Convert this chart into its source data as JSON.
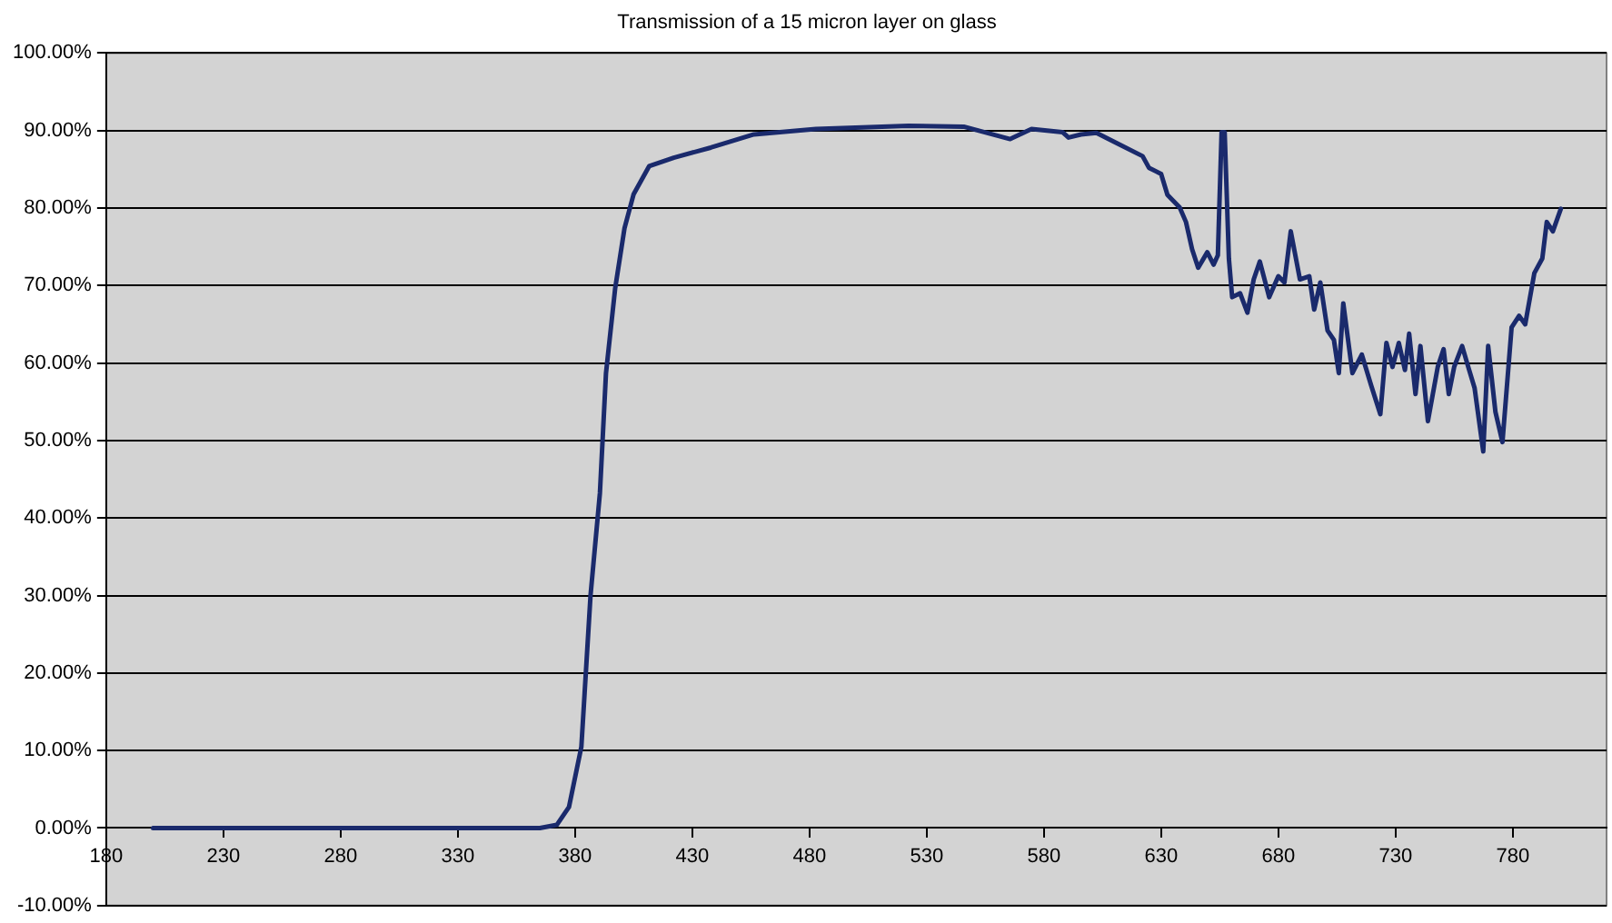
{
  "chart_data": {
    "type": "line",
    "title": "Transmission of a 15 micron layer on glass",
    "xlim": [
      180,
      820
    ],
    "xticks": [
      180,
      230,
      280,
      330,
      380,
      430,
      480,
      530,
      580,
      630,
      680,
      730,
      780
    ],
    "ylim": [
      -10,
      100
    ],
    "yticks": [
      {
        "value": -10,
        "label": "-10.00%"
      },
      {
        "value": 0,
        "label": "0.00%"
      },
      {
        "value": 10,
        "label": "10.00%"
      },
      {
        "value": 20,
        "label": "20.00%"
      },
      {
        "value": 30,
        "label": "30.00%"
      },
      {
        "value": 40,
        "label": "40.00%"
      },
      {
        "value": 50,
        "label": "50.00%"
      },
      {
        "value": 60,
        "label": "60.00%"
      },
      {
        "value": 70,
        "label": "70.00%"
      },
      {
        "value": 80,
        "label": "80.00%"
      },
      {
        "value": 90,
        "label": "90.00%"
      },
      {
        "value": 100,
        "label": "100.00%"
      }
    ],
    "grid": "y",
    "legend": false,
    "marker": "none",
    "line_style": "solid",
    "series": [
      {
        "color": "#1a2a6c",
        "x": [
          200,
          300,
          365,
          372.2,
          377.4,
          382.7,
          386.6,
          390.6,
          393.2,
          397.1,
          401.1,
          405,
          411.6,
          422.1,
          437.9,
          456.3,
          482.7,
          522.2,
          545.8,
          565.6,
          574.7,
          587.9,
          590.5,
          595.8,
          602.4,
          611.6,
          622.1,
          624.8,
          630,
          632.7,
          637.9,
          640.6,
          643.2,
          645.8,
          649.7,
          652.4,
          654.2,
          655.8,
          657.1,
          658.9,
          660.3,
          663.7,
          666.8,
          669.5,
          672.1,
          676.1,
          680,
          682.6,
          685.3,
          689.2,
          693.2,
          695.3,
          697.9,
          701,
          703.7,
          705.8,
          707.7,
          711.6,
          715.6,
          719.5,
          723.5,
          726.1,
          728.7,
          731.4,
          734,
          735.8,
          738.5,
          740.6,
          743.8,
          748,
          750.5,
          752.7,
          755,
          758.4,
          761,
          763.7,
          767.4,
          769.5,
          772.6,
          775.6,
          779.5,
          782.7,
          785.3,
          789.2,
          792.6,
          794.5,
          797.1,
          800.5
        ],
        "values": [
          0,
          0,
          0,
          0.4,
          2.7,
          10.5,
          30,
          43.2,
          58.7,
          69.6,
          77.4,
          81.8,
          85.4,
          86.5,
          87.8,
          89.5,
          90.2,
          90.6,
          90.5,
          88.9,
          90.2,
          89.8,
          89.1,
          89.5,
          89.7,
          88.3,
          86.7,
          85.2,
          84.4,
          81.7,
          80.1,
          78.2,
          74.7,
          72.3,
          74.3,
          72.7,
          73.9,
          89.8,
          89.8,
          73.5,
          68.5,
          69,
          66.5,
          70.8,
          73.1,
          68.5,
          71.2,
          70.4,
          77,
          70.8,
          71.2,
          66.9,
          70.4,
          64.2,
          63,
          58.7,
          67.7,
          58.7,
          61.1,
          57.2,
          53.4,
          62.6,
          59.5,
          62.6,
          59.1,
          63.8,
          56,
          62.2,
          52.5,
          59.5,
          61.8,
          56,
          59.5,
          62.2,
          59.5,
          56.8,
          48.6,
          62.2,
          53.7,
          49.8,
          64.6,
          66.1,
          65,
          71.6,
          73.5,
          78.2,
          77,
          79.9
        ]
      }
    ]
  }
}
